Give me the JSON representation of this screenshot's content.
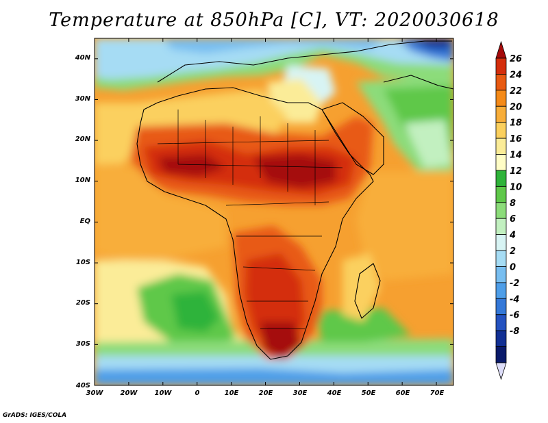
{
  "title": "Temperature at 850hPa [C], VT: 2020030618",
  "credit": "GrADS: IGES/COLA",
  "map": {
    "lon_range": [
      -30,
      75
    ],
    "lat_range": [
      -40,
      45
    ],
    "x_ticks": [
      "30W",
      "20W",
      "10W",
      "0",
      "10E",
      "20E",
      "30E",
      "40E",
      "50E",
      "60E",
      "70E"
    ],
    "y_ticks": [
      "40N",
      "30N",
      "20N",
      "10N",
      "EQ",
      "10S",
      "20S",
      "30S",
      "40S"
    ],
    "x_tick_values": [
      -30,
      -20,
      -10,
      0,
      10,
      20,
      30,
      40,
      50,
      60,
      70
    ],
    "y_tick_values": [
      40,
      30,
      20,
      10,
      0,
      -10,
      -20,
      -30,
      -40
    ]
  },
  "colorbar": {
    "labels": [
      "26",
      "24",
      "22",
      "20",
      "18",
      "16",
      "14",
      "12",
      "10",
      "8",
      "6",
      "4",
      "2",
      "0",
      "-2",
      "-4",
      "-6",
      "-8"
    ],
    "colors": [
      "#a50a0a",
      "#d42e0c",
      "#e85a12",
      "#f48a18",
      "#f8ae3a",
      "#fbd05e",
      "#fbec98",
      "#fffdc6",
      "#2fb33a",
      "#5fc84a",
      "#8cdc7a",
      "#c2f0c0",
      "#d8f4f4",
      "#a6dcf4",
      "#78bef0",
      "#4e9ee8",
      "#3478d8",
      "#2452c0",
      "#123094",
      "#0a1a6a",
      "#dcdcf8"
    ],
    "colors_note": "top arrow first, bottom arrow last"
  },
  "palette": {
    "hot": "#c8200c",
    "warm": "#e85a12",
    "orange": "#f6a030",
    "yellow": "#fbd870",
    "green": "#58c060",
    "light_green": "#a8e6a0",
    "cyan": "#b8f0f0",
    "blue": "#5aa8ec",
    "deep_blue": "#2e64d0"
  }
}
